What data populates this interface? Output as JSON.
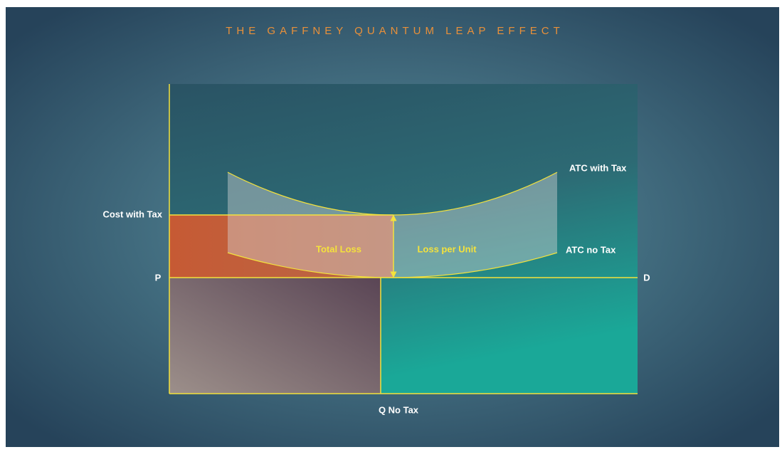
{
  "title": "THE GAFFNEY QUANTUM LEAP EFFECT",
  "axis_labels": {
    "cost_with_tax": "Cost with Tax",
    "price": "P",
    "demand": "D",
    "quantity": "Q No Tax"
  },
  "curve_labels": {
    "atc_with_tax": "ATC with Tax",
    "atc_no_tax": "ATC no Tax"
  },
  "region_labels": {
    "total_loss": "Total Loss",
    "loss_per_unit": "Loss per Unit"
  }
}
